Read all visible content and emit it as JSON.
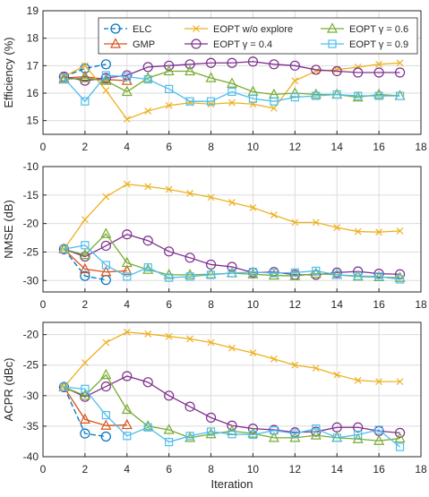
{
  "chart_data": {
    "type": "line",
    "xlabel": "Iteration",
    "x_ticks": [
      0,
      2,
      4,
      6,
      8,
      10,
      12,
      14,
      16,
      18
    ],
    "xlim": [
      0,
      18
    ],
    "grid": true,
    "legend": {
      "placement": "top-right",
      "columns": 3,
      "entries": [
        {
          "name": "ELC",
          "color": "#0072BD",
          "marker": "circle",
          "dash": "dashed"
        },
        {
          "name": "GMP",
          "color": "#D95319",
          "marker": "triangle",
          "dash": "solid"
        },
        {
          "name": "EOPT w/o explore",
          "color": "#EDB120",
          "marker": "x",
          "dash": "solid"
        },
        {
          "name": "EOPT γ = 0.4",
          "color": "#7E2F8E",
          "marker": "circle",
          "dash": "solid"
        },
        {
          "name": "EOPT γ = 0.6",
          "color": "#77AC30",
          "marker": "triangle",
          "dash": "solid"
        },
        {
          "name": "EOPT γ = 0.9",
          "color": "#4DBEEE",
          "marker": "square",
          "dash": "solid"
        }
      ]
    },
    "panels": [
      {
        "ylabel": "Efficiency (%)",
        "ylim": [
          14.5,
          19
        ],
        "y_ticks": [
          15,
          16,
          17,
          18,
          19
        ],
        "series": [
          {
            "name": "ELC",
            "x": [
              1,
              2,
              3
            ],
            "y": [
              16.6,
              16.9,
              17.05
            ]
          },
          {
            "name": "GMP",
            "x": [
              1,
              2,
              3,
              4
            ],
            "y": [
              16.55,
              16.6,
              16.5,
              16.45
            ]
          },
          {
            "name": "EOPT w/o explore",
            "x": [
              1,
              2,
              3,
              4,
              5,
              6,
              7,
              8,
              9,
              10,
              11,
              12,
              13,
              14,
              15,
              16,
              17
            ],
            "y": [
              16.6,
              17.0,
              16.1,
              15.05,
              15.35,
              15.55,
              15.65,
              15.6,
              15.65,
              15.6,
              15.45,
              16.45,
              16.8,
              16.85,
              16.95,
              17.05,
              17.1
            ]
          },
          {
            "name": "EOPT γ = 0.4",
            "x": [
              1,
              2,
              3,
              4,
              5,
              6,
              7,
              8,
              9,
              10,
              11,
              12,
              13,
              14,
              15,
              16,
              17
            ],
            "y": [
              16.6,
              16.45,
              16.55,
              16.65,
              16.95,
              17.0,
              17.05,
              17.1,
              17.1,
              17.15,
              17.05,
              17.0,
              16.85,
              16.8,
              16.75,
              16.75,
              16.75
            ]
          },
          {
            "name": "EOPT γ = 0.6",
            "x": [
              1,
              2,
              3,
              4,
              5,
              6,
              7,
              8,
              9,
              10,
              11,
              12,
              13,
              14,
              15,
              16,
              17
            ],
            "y": [
              16.5,
              16.55,
              16.45,
              16.05,
              16.55,
              16.8,
              16.8,
              16.55,
              16.35,
              16.05,
              15.95,
              16.0,
              15.95,
              15.95,
              15.85,
              15.95,
              15.9
            ]
          },
          {
            "name": "EOPT γ = 0.9",
            "x": [
              1,
              2,
              3,
              4,
              5,
              6,
              7,
              8,
              9,
              10,
              11,
              12,
              13,
              14,
              15,
              16,
              17
            ],
            "y": [
              16.55,
              15.7,
              16.65,
              16.6,
              16.5,
              16.15,
              15.7,
              15.7,
              16.05,
              15.8,
              15.7,
              15.85,
              15.9,
              15.95,
              15.9,
              15.9,
              15.9
            ]
          }
        ]
      },
      {
        "ylabel": "NMSE (dB)",
        "ylim": [
          -32,
          -10
        ],
        "y_ticks": [
          -30,
          -25,
          -20,
          -15,
          -10
        ],
        "series": [
          {
            "name": "ELC",
            "x": [
              1,
              2,
              3
            ],
            "y": [
              -24.5,
              -29.2,
              -29.9
            ]
          },
          {
            "name": "GMP",
            "x": [
              1,
              2,
              3,
              4
            ],
            "y": [
              -24.5,
              -28.0,
              -28.5,
              -28.3
            ]
          },
          {
            "name": "EOPT w/o explore",
            "x": [
              1,
              2,
              3,
              4,
              5,
              6,
              7,
              8,
              9,
              10,
              11,
              12,
              13,
              14,
              15,
              16,
              17
            ],
            "y": [
              -24.5,
              -19.3,
              -15.3,
              -13.1,
              -13.5,
              -14.0,
              -14.7,
              -15.4,
              -16.3,
              -17.2,
              -18.5,
              -19.8,
              -19.8,
              -20.7,
              -21.4,
              -21.5,
              -21.3
            ]
          },
          {
            "name": "EOPT γ = 0.4",
            "x": [
              1,
              2,
              3,
              4,
              5,
              6,
              7,
              8,
              9,
              10,
              11,
              12,
              13,
              14,
              15,
              16,
              17
            ],
            "y": [
              -24.5,
              -25.8,
              -23.9,
              -21.9,
              -23.0,
              -24.9,
              -26.0,
              -27.2,
              -27.6,
              -28.6,
              -28.5,
              -29.0,
              -29.0,
              -28.6,
              -28.4,
              -28.8,
              -28.9
            ]
          },
          {
            "name": "EOPT γ = 0.6",
            "x": [
              1,
              2,
              3,
              4,
              5,
              6,
              7,
              8,
              9,
              10,
              11,
              12,
              13,
              14,
              15,
              16,
              17
            ],
            "y": [
              -24.5,
              -25.5,
              -21.8,
              -26.9,
              -28.1,
              -29.0,
              -29.0,
              -28.9,
              -28.7,
              -28.9,
              -29.1,
              -29.2,
              -28.8,
              -29.0,
              -29.3,
              -29.4,
              -29.5
            ]
          },
          {
            "name": "EOPT γ = 0.9",
            "x": [
              1,
              2,
              3,
              4,
              5,
              6,
              7,
              8,
              9,
              10,
              11,
              12,
              13,
              14,
              15,
              16,
              17
            ],
            "y": [
              -24.5,
              -23.8,
              -27.3,
              -29.3,
              -27.7,
              -29.5,
              -29.3,
              -29.0,
              -28.7,
              -28.5,
              -28.7,
              -28.6,
              -28.3,
              -29.0,
              -29.2,
              -29.3,
              -29.8
            ]
          }
        ]
      },
      {
        "ylabel": "ACPR (dBc)",
        "ylim": [
          -40,
          -18
        ],
        "y_ticks": [
          -40,
          -35,
          -30,
          -25,
          -20
        ],
        "series": [
          {
            "name": "ELC",
            "x": [
              1,
              2,
              3
            ],
            "y": [
              -28.6,
              -36.2,
              -36.7
            ]
          },
          {
            "name": "GMP",
            "x": [
              1,
              2,
              3,
              4
            ],
            "y": [
              -28.6,
              -33.9,
              -34.9,
              -34.8
            ]
          },
          {
            "name": "EOPT w/o explore",
            "x": [
              1,
              2,
              3,
              4,
              5,
              6,
              7,
              8,
              9,
              10,
              11,
              12,
              13,
              14,
              15,
              16,
              17
            ],
            "y": [
              -28.6,
              -24.6,
              -21.3,
              -19.6,
              -19.9,
              -20.3,
              -20.7,
              -21.3,
              -22.2,
              -23.0,
              -24.0,
              -25.0,
              -25.5,
              -26.6,
              -27.5,
              -27.7,
              -27.7
            ]
          },
          {
            "name": "EOPT γ = 0.4",
            "x": [
              1,
              2,
              3,
              4,
              5,
              6,
              7,
              8,
              9,
              10,
              11,
              12,
              13,
              14,
              15,
              16,
              17
            ],
            "y": [
              -28.6,
              -30.2,
              -28.5,
              -26.8,
              -27.8,
              -30.0,
              -31.8,
              -33.6,
              -34.9,
              -35.4,
              -35.6,
              -36.0,
              -35.9,
              -35.2,
              -35.2,
              -35.8,
              -36.1
            ]
          },
          {
            "name": "EOPT γ = 0.6",
            "x": [
              1,
              2,
              3,
              4,
              5,
              6,
              7,
              8,
              9,
              10,
              11,
              12,
              13,
              14,
              15,
              16,
              17
            ],
            "y": [
              -28.6,
              -30.0,
              -26.6,
              -32.3,
              -35.0,
              -35.6,
              -36.9,
              -36.3,
              -35.8,
              -36.2,
              -36.9,
              -36.9,
              -36.5,
              -36.9,
              -37.1,
              -37.4,
              -37.0
            ]
          },
          {
            "name": "EOPT γ = 0.9",
            "x": [
              1,
              2,
              3,
              4,
              5,
              6,
              7,
              8,
              9,
              10,
              11,
              12,
              13,
              14,
              15,
              16,
              17
            ],
            "y": [
              -28.6,
              -28.9,
              -33.2,
              -36.6,
              -35.2,
              -37.6,
              -36.6,
              -35.9,
              -36.3,
              -36.4,
              -35.7,
              -36.2,
              -35.4,
              -36.9,
              -36.4,
              -35.6,
              -38.4
            ]
          }
        ]
      }
    ]
  }
}
